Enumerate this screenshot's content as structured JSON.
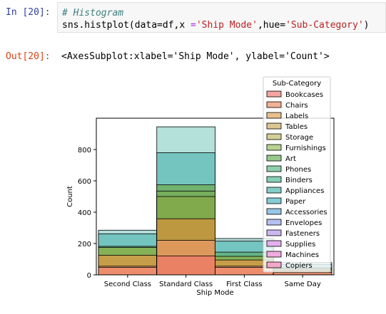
{
  "input_cell": {
    "prompt": "In [20]:",
    "code_comment": "# Histogram",
    "code": {
      "p1": "sns.histplot(data=df,x ",
      "op": "=",
      "p2": "'Ship Mode'",
      "p3": ",hue=",
      "p4": "'Sub-Category'",
      "p5": ")"
    }
  },
  "output_cell": {
    "prompt": "Out[20]:",
    "text": "<AxesSubplot:xlabel='Ship Mode', ylabel='Count'>"
  },
  "chart_data": {
    "type": "bar",
    "stacked_overlay": true,
    "categories": [
      "Second Class",
      "Standard Class",
      "First Class",
      "Same Day"
    ],
    "xlabel": "Ship Mode",
    "ylabel": "Count",
    "ylim": [
      0,
      1000
    ],
    "yticks": [
      0,
      200,
      400,
      600,
      800
    ],
    "legend": {
      "title": "Sub-Category",
      "placement": "top-right",
      "entries": [
        {
          "name": "Bookcases",
          "color": "#f4a6a0"
        },
        {
          "name": "Chairs",
          "color": "#f2b195"
        },
        {
          "name": "Labels",
          "color": "#e8c08e"
        },
        {
          "name": "Tables",
          "color": "#dcc792"
        },
        {
          "name": "Storage",
          "color": "#d4cf96"
        },
        {
          "name": "Furnishings",
          "color": "#b9d292"
        },
        {
          "name": "Art",
          "color": "#97c98b"
        },
        {
          "name": "Phones",
          "color": "#8fd0ae"
        },
        {
          "name": "Binders",
          "color": "#86ceb8"
        },
        {
          "name": "Appliances",
          "color": "#84cdc6"
        },
        {
          "name": "Paper",
          "color": "#86ccd6"
        },
        {
          "name": "Accessories",
          "color": "#98c6e6"
        },
        {
          "name": "Envelopes",
          "color": "#b4c0ee"
        },
        {
          "name": "Fasteners",
          "color": "#cbb8f0"
        },
        {
          "name": "Supplies",
          "color": "#e3b1ee"
        },
        {
          "name": "Machines",
          "color": "#f0abe0"
        },
        {
          "name": "Copiers",
          "color": "#f3a8c8"
        }
      ]
    },
    "series": [
      {
        "name": "Second Class",
        "bars": [
          {
            "y": 285,
            "color": "#a7d7d4"
          },
          {
            "y": 262,
            "color": "#69c0bb"
          },
          {
            "y": 182,
            "color": "#62b07c"
          },
          {
            "y": 175,
            "color": "#8bb04f"
          },
          {
            "y": 125,
            "color": "#d19a45"
          },
          {
            "y": 55,
            "color": "#e8a66e"
          },
          {
            "y": 48,
            "color": "#ef8a70"
          }
        ]
      },
      {
        "name": "Standard Class",
        "bars": [
          {
            "y": 945,
            "color": "#a7dcd4"
          },
          {
            "y": 780,
            "color": "#69c0bb"
          },
          {
            "y": 575,
            "color": "#71ae62"
          },
          {
            "y": 535,
            "color": "#77ad5a"
          },
          {
            "y": 500,
            "color": "#84a94a"
          },
          {
            "y": 358,
            "color": "#c8953f"
          },
          {
            "y": 220,
            "color": "#e39862"
          },
          {
            "y": 120,
            "color": "#ec7c66"
          }
        ]
      },
      {
        "name": "First Class",
        "bars": [
          {
            "y": 232,
            "color": "#a7d7d4"
          },
          {
            "y": 215,
            "color": "#69c0bb"
          },
          {
            "y": 145,
            "color": "#62b07c"
          },
          {
            "y": 118,
            "color": "#8bb04f"
          },
          {
            "y": 95,
            "color": "#d19a45"
          },
          {
            "y": 55,
            "color": "#e8a66e"
          },
          {
            "y": 48,
            "color": "#ef8a70"
          }
        ]
      },
      {
        "name": "Same Day",
        "bars": [
          {
            "y": 78,
            "color": "#a7d7d4"
          },
          {
            "y": 65,
            "color": "#69c0bb"
          },
          {
            "y": 45,
            "color": "#62b07c"
          },
          {
            "y": 38,
            "color": "#8bb04f"
          },
          {
            "y": 30,
            "color": "#d19a45"
          },
          {
            "y": 15,
            "color": "#ef8a70"
          }
        ]
      }
    ]
  }
}
